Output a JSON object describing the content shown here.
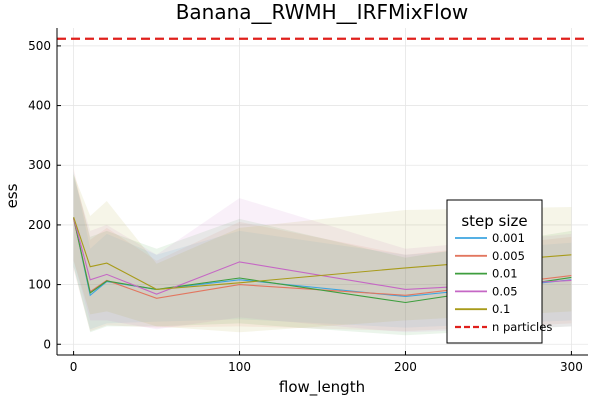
{
  "chart_data": {
    "type": "line",
    "title": "Banana__RWMH__IRFMixFlow",
    "xlabel": "flow_length",
    "ylabel": "ess",
    "xlim": [
      -10,
      310
    ],
    "ylim": [
      -18,
      530
    ],
    "xticks": [
      0,
      100,
      200,
      300
    ],
    "yticks": [
      0,
      100,
      200,
      300,
      400,
      500
    ],
    "grid": true,
    "legend_title": "step size",
    "legend_position": "bottom-right",
    "x": [
      0,
      10,
      20,
      50,
      100,
      200,
      300
    ],
    "series": [
      {
        "name": "0.001",
        "color": "#3da5e0",
        "values": [
          212,
          82,
          105,
          92,
          108,
          80,
          108
        ],
        "lower": [
          130,
          25,
          35,
          38,
          42,
          28,
          40
        ],
        "upper": [
          290,
          160,
          185,
          150,
          190,
          150,
          170
        ]
      },
      {
        "name": "0.005",
        "color": "#e2765f",
        "values": [
          210,
          88,
          107,
          77,
          100,
          82,
          115
        ],
        "lower": [
          125,
          22,
          32,
          28,
          30,
          22,
          35
        ],
        "upper": [
          295,
          175,
          195,
          140,
          205,
          150,
          180
        ]
      },
      {
        "name": "0.01",
        "color": "#3e9e3e",
        "values": [
          212,
          86,
          106,
          92,
          111,
          70,
          112
        ],
        "lower": [
          130,
          20,
          30,
          30,
          35,
          15,
          30
        ],
        "upper": [
          285,
          180,
          190,
          160,
          210,
          145,
          190
        ]
      },
      {
        "name": "0.05",
        "color": "#c567c5",
        "values": [
          212,
          108,
          117,
          84,
          138,
          92,
          107
        ],
        "lower": [
          140,
          40,
          40,
          25,
          45,
          20,
          30
        ],
        "upper": [
          280,
          190,
          200,
          150,
          245,
          160,
          185
        ]
      },
      {
        "name": "0.1",
        "color": "#a89b1a",
        "values": [
          213,
          130,
          136,
          92,
          103,
          128,
          150
        ],
        "lower": [
          140,
          50,
          55,
          30,
          20,
          40,
          55
        ],
        "upper": [
          285,
          215,
          240,
          135,
          195,
          225,
          230
        ]
      }
    ],
    "reference_line": {
      "name": "n particles",
      "value": 512,
      "color": "#e0201c"
    }
  }
}
